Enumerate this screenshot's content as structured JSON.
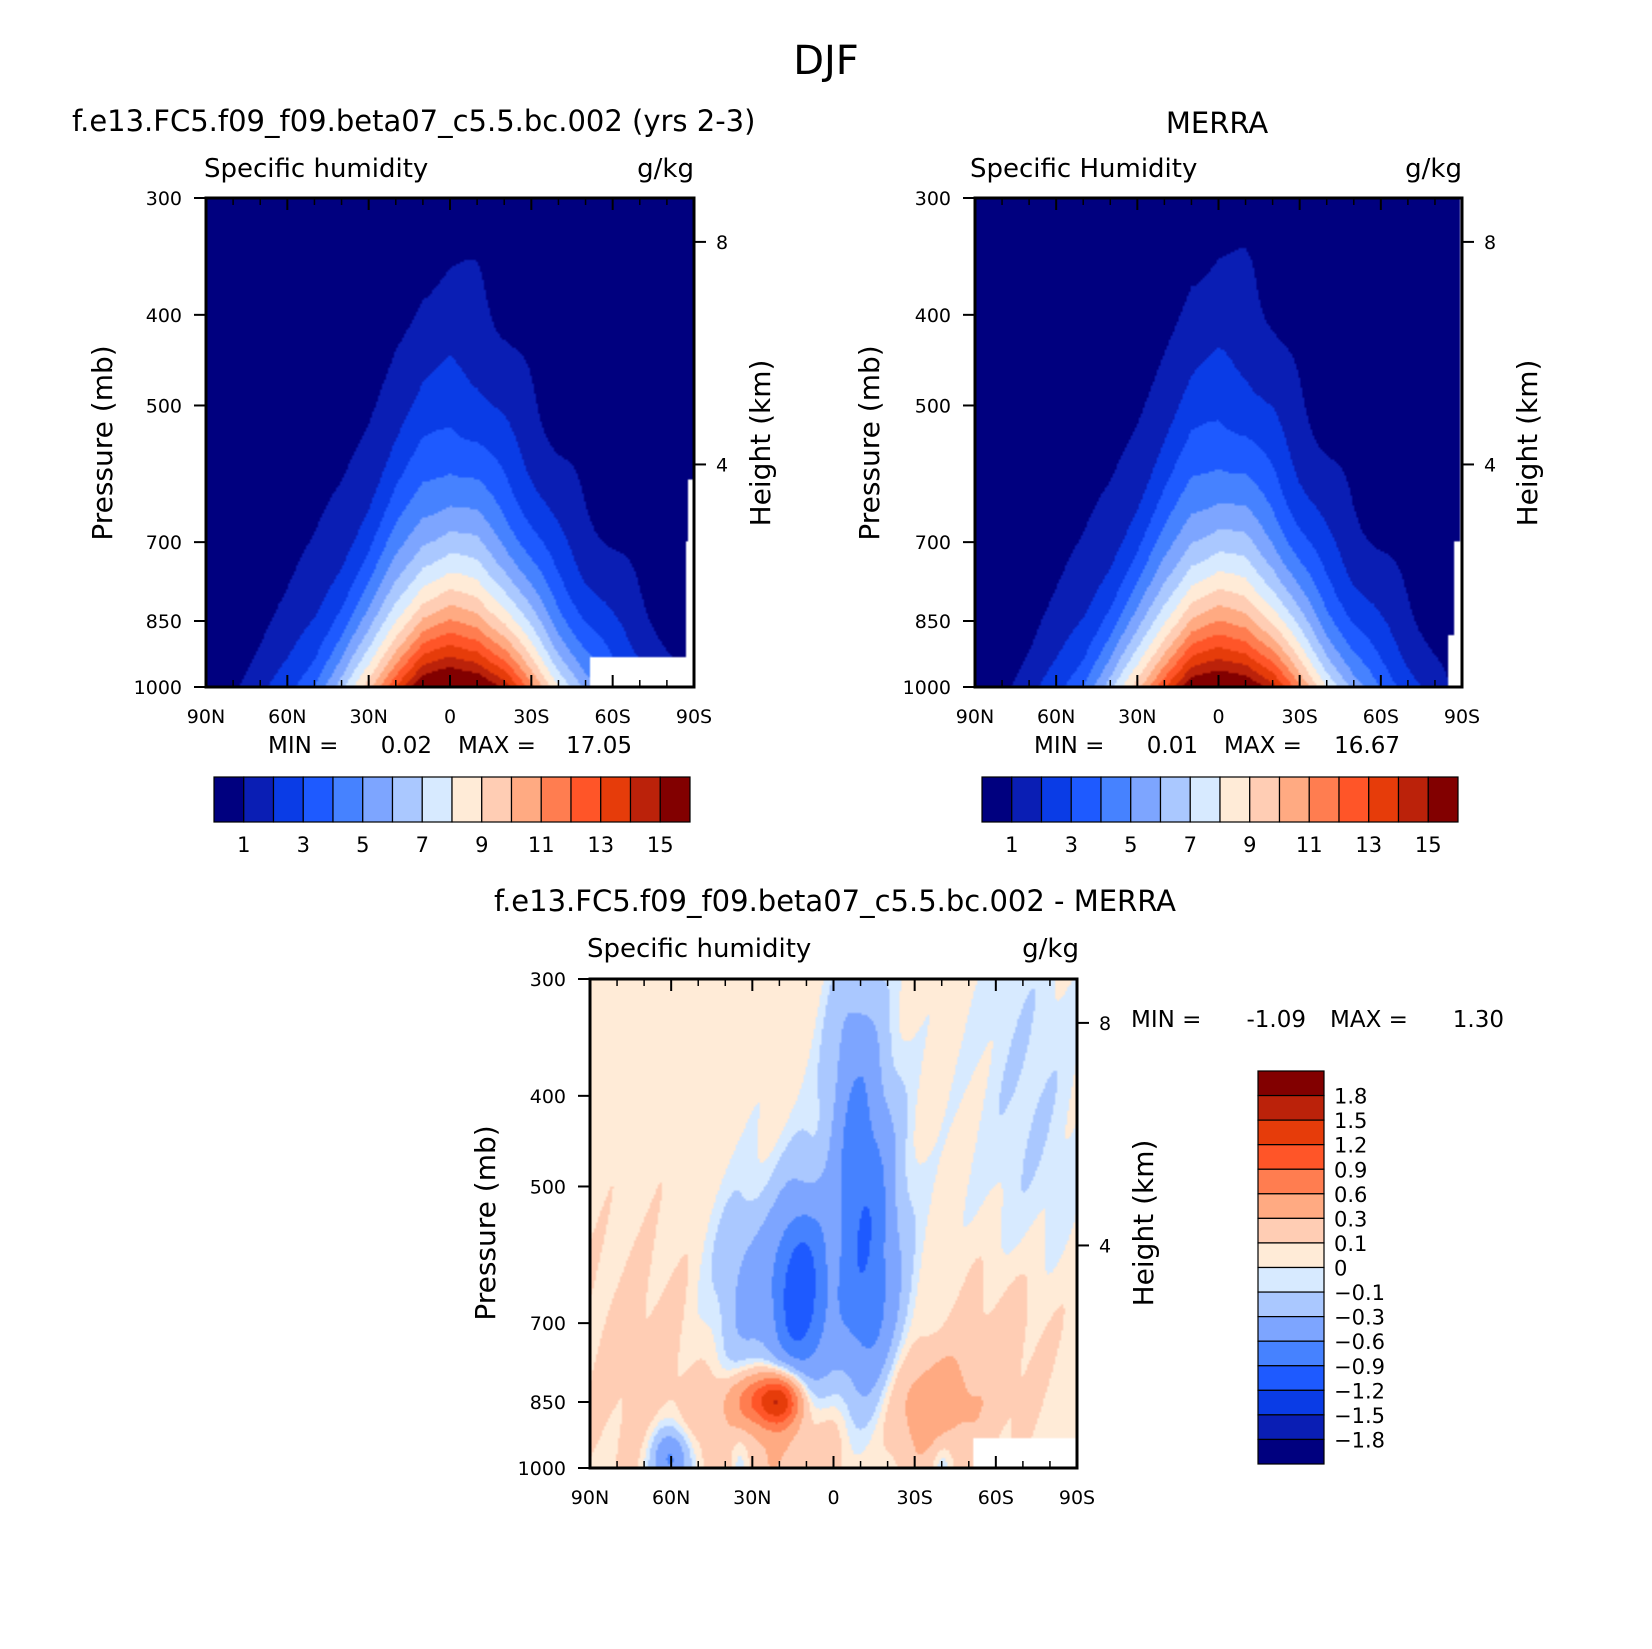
{
  "figure": {
    "title": "DJF"
  },
  "chart_data": [
    {
      "type": "heatmap",
      "panel": "model",
      "title": "f.e13.FC5.f09_f09.beta07_c5.5.bc.002 (yrs 2-3)",
      "left_label": "Specific humidity",
      "units": "g/kg",
      "ylabel": "Pressure (mb)",
      "ylabel_right": "Height (km)",
      "x_ticks": [
        "90N",
        "60N",
        "30N",
        "0",
        "30S",
        "60S",
        "90S"
      ],
      "y_ticks": [
        "300",
        "400",
        "500",
        "700",
        "850",
        "1000"
      ],
      "height_ticks": [
        "8",
        "4"
      ],
      "xlim": [
        90,
        -90
      ],
      "ylim": [
        1000,
        300
      ],
      "y_scale": "log-pressure",
      "stats": {
        "min_label": "MIN =",
        "min": "0.02",
        "max_label": "MAX =",
        "max": "17.05"
      },
      "colorbar": {
        "orientation": "horizontal",
        "levels": [
          1,
          2,
          3,
          4,
          5,
          6,
          7,
          8,
          9,
          10,
          11,
          12,
          13,
          14,
          15
        ],
        "labels": [
          "1",
          "3",
          "5",
          "7",
          "9",
          "11",
          "13",
          "15"
        ],
        "colors": [
          "#00007f",
          "#0a1eb4",
          "#0a3ce6",
          "#1e5aff",
          "#4682ff",
          "#7da5ff",
          "#aac8ff",
          "#d7eaff",
          "#ffebd7",
          "#ffcdb4",
          "#ffaa82",
          "#ff7d50",
          "#ff5528",
          "#e63c0a",
          "#bb220a",
          "#820000"
        ]
      },
      "field": {
        "peak": 17.05,
        "surface_dry_value": 0.02,
        "profile_lat": [
          90,
          80,
          70,
          60,
          50,
          40,
          30,
          20,
          10,
          0,
          -10,
          -20,
          -30,
          -40,
          -50,
          -60,
          -70,
          -80,
          -90
        ],
        "surface_value": [
          0.4,
          0.9,
          1.6,
          2.6,
          4.1,
          6.5,
          9.6,
          13.2,
          16.2,
          17.05,
          16.7,
          14.6,
          11.4,
          8.2,
          5.6,
          4.0,
          2.8,
          1.5,
          0.6
        ],
        "scale_height_km": [
          1.4,
          1.5,
          1.6,
          1.7,
          1.8,
          1.9,
          2.1,
          2.4,
          2.6,
          2.7,
          2.6,
          2.4,
          2.2,
          2.0,
          1.9,
          1.8,
          1.7,
          1.5,
          1.4
        ],
        "missing": [
          {
            "lat": [
              -52,
              -90
            ],
            "p": [
              930,
              1000
            ]
          },
          {
            "lat": [
              -87,
              -90
            ],
            "p": [
              700,
              930
            ]
          },
          {
            "lat": [
              -88,
              -90
            ],
            "p": [
              600,
              700
            ]
          }
        ]
      }
    },
    {
      "type": "heatmap",
      "panel": "observation",
      "title": "MERRA",
      "left_label": "Specific Humidity",
      "units": "g/kg",
      "ylabel": "Pressure (mb)",
      "ylabel_right": "Height (km)",
      "x_ticks": [
        "90N",
        "60N",
        "30N",
        "0",
        "30S",
        "60S",
        "90S"
      ],
      "y_ticks": [
        "300",
        "400",
        "500",
        "700",
        "850",
        "1000"
      ],
      "height_ticks": [
        "8",
        "4"
      ],
      "xlim": [
        90,
        -90
      ],
      "ylim": [
        1000,
        300
      ],
      "y_scale": "log-pressure",
      "stats": {
        "min_label": "MIN =",
        "min": "0.01",
        "max_label": "MAX =",
        "max": "16.67"
      },
      "colorbar": {
        "orientation": "horizontal",
        "levels": [
          1,
          2,
          3,
          4,
          5,
          6,
          7,
          8,
          9,
          10,
          11,
          12,
          13,
          14,
          15
        ],
        "labels": [
          "1",
          "3",
          "5",
          "7",
          "9",
          "11",
          "13",
          "15"
        ],
        "colors": [
          "#00007f",
          "#0a1eb4",
          "#0a3ce6",
          "#1e5aff",
          "#4682ff",
          "#7da5ff",
          "#aac8ff",
          "#d7eaff",
          "#ffebd7",
          "#ffcdb4",
          "#ffaa82",
          "#ff7d50",
          "#ff5528",
          "#e63c0a",
          "#bb220a",
          "#820000"
        ]
      },
      "field": {
        "peak": 16.67,
        "surface_dry_value": 0.01,
        "profile_lat": [
          90,
          80,
          70,
          60,
          50,
          40,
          30,
          20,
          10,
          0,
          -10,
          -20,
          -30,
          -40,
          -50,
          -60,
          -70,
          -80,
          -90
        ],
        "surface_value": [
          0.3,
          0.8,
          1.5,
          2.6,
          4.1,
          6.5,
          9.6,
          13.0,
          15.9,
          16.67,
          16.4,
          14.3,
          11.2,
          8.1,
          5.5,
          3.9,
          2.6,
          1.4,
          0.5
        ],
        "scale_height_km": [
          1.3,
          1.4,
          1.5,
          1.7,
          1.8,
          1.9,
          2.1,
          2.4,
          2.7,
          2.8,
          2.7,
          2.5,
          2.2,
          2.0,
          1.9,
          1.8,
          1.7,
          1.5,
          1.3
        ],
        "missing": [
          {
            "lat": [
              -85,
              -90
            ],
            "p": [
              880,
              1000
            ]
          },
          {
            "lat": [
              -87,
              -90
            ],
            "p": [
              700,
              880
            ]
          },
          {
            "lat": [
              -89,
              -90
            ],
            "p": [
              300,
              1000
            ]
          }
        ]
      }
    },
    {
      "type": "heatmap",
      "panel": "difference",
      "title": "f.e13.FC5.f09_f09.beta07_c5.5.bc.002 - MERRA",
      "left_label": "Specific humidity",
      "units": "g/kg",
      "ylabel": "Pressure (mb)",
      "ylabel_right": "Height (km)",
      "x_ticks": [
        "90N",
        "60N",
        "30N",
        "0",
        "30S",
        "60S",
        "90S"
      ],
      "y_ticks": [
        "300",
        "400",
        "500",
        "700",
        "850",
        "1000"
      ],
      "height_ticks": [
        "8",
        "4"
      ],
      "xlim": [
        90,
        -90
      ],
      "ylim": [
        1000,
        300
      ],
      "y_scale": "log-pressure",
      "stats": {
        "min_label": "MIN =",
        "min": "-1.09",
        "max_label": "MAX =",
        "max": "1.30"
      },
      "colorbar": {
        "orientation": "vertical",
        "levels": [
          -1.8,
          -1.5,
          -1.2,
          -0.9,
          -0.6,
          -0.3,
          -0.1,
          0,
          0.1,
          0.3,
          0.6,
          0.9,
          1.2,
          1.5,
          1.8
        ],
        "labels": [
          "−1.8",
          "−1.5",
          "−1.2",
          "−0.9",
          "−0.6",
          "−0.3",
          "−0.1",
          "0",
          "0.1",
          "0.3",
          "0.6",
          "0.9",
          "1.2",
          "1.5",
          "1.8"
        ],
        "colors": [
          "#00007f",
          "#0a1eb4",
          "#0a3ce6",
          "#1e5aff",
          "#4682ff",
          "#7da5ff",
          "#aac8ff",
          "#d7eaff",
          "#ffebd7",
          "#ffcdb4",
          "#ffaa82",
          "#ff7d50",
          "#ff5528",
          "#e63c0a",
          "#bb220a",
          "#820000"
        ]
      },
      "field": {
        "background": 0.05,
        "features": [
          {
            "lat": 12,
            "p": 650,
            "dlat": 7,
            "dp_km": 1.3,
            "amp": -1.09
          },
          {
            "lat": -12,
            "p": 600,
            "dlat": 9,
            "dp_km": 2.4,
            "amp": -0.9
          },
          {
            "lat": -7,
            "p": 380,
            "dlat": 7,
            "dp_km": 1.8,
            "amp": -0.3
          },
          {
            "lat": 30,
            "p": 650,
            "dlat": 10,
            "dp_km": 1.2,
            "amp": -0.45
          },
          {
            "lat": 20,
            "p": 845,
            "dlat": 6,
            "dp_km": 0.35,
            "amp": 1.3
          },
          {
            "lat": 30,
            "p": 845,
            "dlat": 8,
            "dp_km": 0.35,
            "amp": 0.55
          },
          {
            "lat": -35,
            "p": 845,
            "dlat": 16,
            "dp_km": 0.7,
            "amp": 0.38
          },
          {
            "lat": 10,
            "p": 960,
            "dlat": 30,
            "dp_km": 0.8,
            "amp": 0.28
          },
          {
            "lat": 70,
            "p": 760,
            "dlat": 18,
            "dp_km": 1.5,
            "amp": 0.1
          },
          {
            "lat": 60,
            "p": 980,
            "dlat": 5,
            "dp_km": 0.4,
            "amp": -0.8
          },
          {
            "lat": 35,
            "p": 980,
            "dlat": 3,
            "dp_km": 0.4,
            "amp": -0.25
          },
          {
            "lat": -40,
            "p": 985,
            "dlat": 3,
            "dp_km": 0.3,
            "amp": -0.2
          },
          {
            "lat": -72,
            "p": 400,
            "dlat": 14,
            "dp_km": 2.5,
            "amp": -0.15
          },
          {
            "lat": -65,
            "p": 700,
            "dlat": 14,
            "dp_km": 1.0,
            "amp": 0.12
          }
        ],
        "missing": [
          {
            "lat": [
              -52,
              -90
            ],
            "p": [
              930,
              1000
            ]
          }
        ]
      }
    }
  ]
}
